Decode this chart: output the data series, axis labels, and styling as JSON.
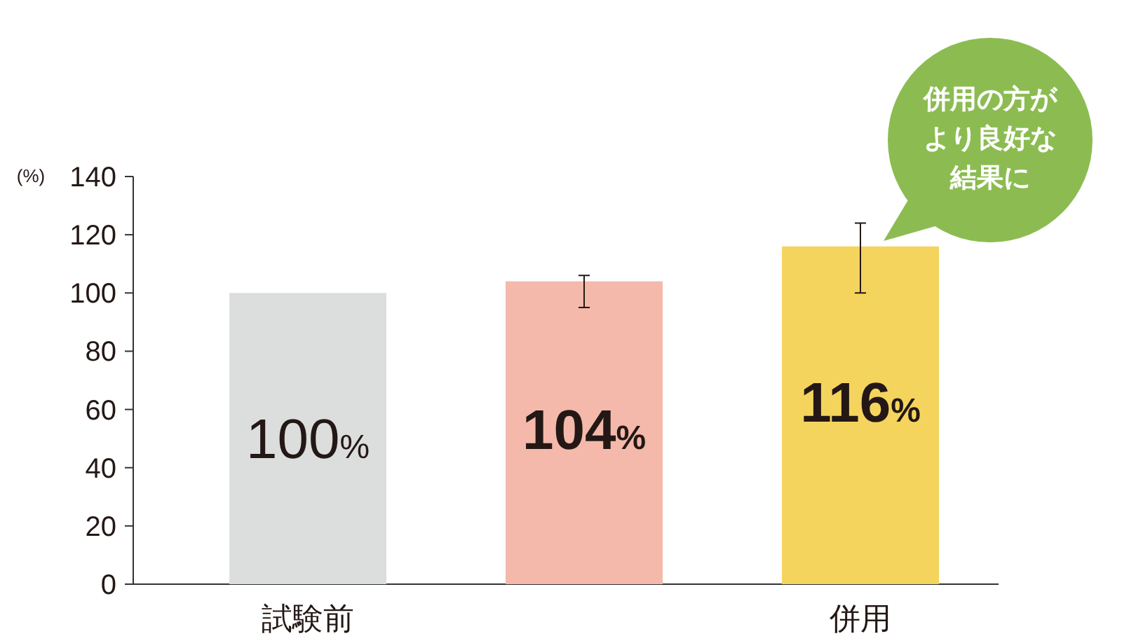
{
  "chart_data": {
    "type": "bar",
    "ylabel": "(%)",
    "categories": [
      "試験前",
      null,
      "併用"
    ],
    "values": [
      100,
      104,
      116
    ],
    "colors": [
      "#dcdddd",
      "#f4b9aa",
      "#f5d45e"
    ],
    "errors": [
      null,
      [
        95,
        106
      ],
      [
        100,
        124
      ]
    ],
    "value_labels": [
      "100%",
      "104%",
      "116%"
    ],
    "ylim": [
      0,
      140
    ],
    "yticks": [
      0,
      20,
      40,
      60,
      80,
      100,
      120,
      140
    ],
    "grid": false,
    "annotations": [
      "併用の方が",
      "より良好な",
      "結果に"
    ]
  }
}
